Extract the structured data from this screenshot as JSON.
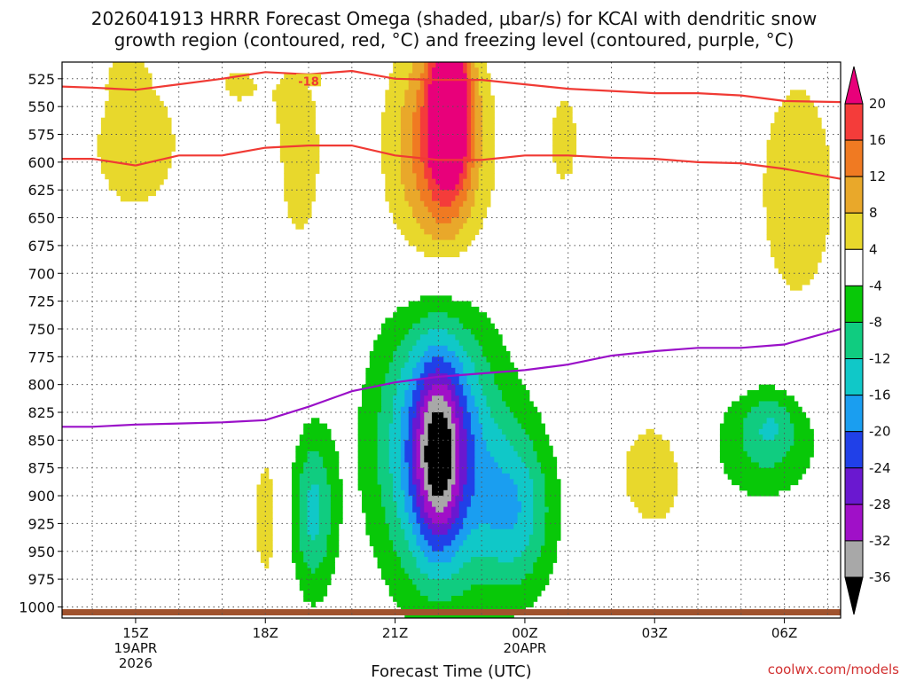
{
  "chart_data": {
    "type": "contour",
    "title_line1": "2026041913 HRRR Forecast Omega (shaded, μbar/s) for KCAI with dendritic snow",
    "title_line2": "growth region (contoured, red, °C) and freezing level (contoured, purple, °C)",
    "xlabel": "Forecast Time (UTC)",
    "ylabel": "",
    "y_units": "hPa",
    "ylim": [
      1010,
      510
    ],
    "xlim": [
      13.3,
      31.3
    ],
    "y_ticks": [
      525,
      550,
      575,
      600,
      625,
      650,
      675,
      700,
      725,
      750,
      775,
      800,
      825,
      850,
      875,
      900,
      925,
      950,
      975,
      1000
    ],
    "x_ticks": [
      {
        "hour": 15,
        "label": "15Z",
        "date": "19APR",
        "year": "2026"
      },
      {
        "hour": 18,
        "label": "18Z",
        "date": "",
        "year": ""
      },
      {
        "hour": 21,
        "label": "21Z",
        "date": "",
        "year": ""
      },
      {
        "hour": 24,
        "label": "00Z",
        "date": "20APR",
        "year": ""
      },
      {
        "hour": 27,
        "label": "03Z",
        "date": "",
        "year": ""
      },
      {
        "hour": 30,
        "label": "06Z",
        "date": "",
        "year": ""
      }
    ],
    "colorbar": {
      "ticks": [
        "20",
        "16",
        "12",
        "8",
        "4",
        "-4",
        "-8",
        "-12",
        "-16",
        "-20",
        "-24",
        "-28",
        "-32",
        "-36"
      ],
      "bins": [
        {
          "lo": 20,
          "hi": 99,
          "color": "#e8007a"
        },
        {
          "lo": 16,
          "hi": 20,
          "color": "#f43c3a"
        },
        {
          "lo": 12,
          "hi": 16,
          "color": "#f07a22"
        },
        {
          "lo": 8,
          "hi": 12,
          "color": "#e9a82a"
        },
        {
          "lo": 4,
          "hi": 8,
          "color": "#e8d82c"
        },
        {
          "lo": -4,
          "hi": 4,
          "color": "#ffffff"
        },
        {
          "lo": -8,
          "hi": -4,
          "color": "#08c808"
        },
        {
          "lo": -12,
          "hi": -8,
          "color": "#10cc80"
        },
        {
          "lo": -16,
          "hi": -12,
          "color": "#10c8c8"
        },
        {
          "lo": -20,
          "hi": -16,
          "color": "#1a9ef0"
        },
        {
          "lo": -24,
          "hi": -20,
          "color": "#2040e8"
        },
        {
          "lo": -28,
          "hi": -24,
          "color": "#6a18d0"
        },
        {
          "lo": -32,
          "hi": -28,
          "color": "#a010c8"
        },
        {
          "lo": -36,
          "hi": -32,
          "color": "#a8a8a8"
        },
        {
          "lo": -99,
          "hi": -36,
          "color": "#000000"
        }
      ]
    },
    "omega_blobs": [
      {
        "t": 15.0,
        "p": 585,
        "rt": 1.15,
        "rp": 68,
        "w": 7
      },
      {
        "t": 14.8,
        "p": 520,
        "rt": 0.45,
        "rp": 22,
        "w": 5
      },
      {
        "t": 18.8,
        "p": 595,
        "rt": 0.85,
        "rp": 140,
        "w": 5
      },
      {
        "t": 17.3,
        "p": 530,
        "rt": 0.9,
        "rp": 45,
        "w": 4
      },
      {
        "t": 22.0,
        "p": 590,
        "rt": 1.15,
        "rp": 110,
        "w": 15
      },
      {
        "t": 22.2,
        "p": 560,
        "rt": 0.5,
        "rp": 80,
        "w": 12
      },
      {
        "t": 22.3,
        "p": 545,
        "rt": 0.4,
        "rp": 55,
        "w": 18
      },
      {
        "t": 24.9,
        "p": 580,
        "rt": 0.55,
        "rp": 70,
        "w": 5
      },
      {
        "t": 30.3,
        "p": 625,
        "rt": 1.2,
        "rp": 140,
        "w": 6
      },
      {
        "t": 18.0,
        "p": 920,
        "rt": 0.32,
        "rp": 70,
        "w": 6
      },
      {
        "t": 27.0,
        "p": 880,
        "rt": 1.1,
        "rp": 65,
        "w": 6
      },
      {
        "t": 22.0,
        "p": 855,
        "rt": 1.6,
        "rp": 130,
        "w": -14
      },
      {
        "t": 22.0,
        "p": 860,
        "rt": 1.0,
        "rp": 110,
        "w": -12
      },
      {
        "t": 22.0,
        "p": 865,
        "rt": 0.5,
        "rp": 80,
        "w": -16
      },
      {
        "t": 19.1,
        "p": 915,
        "rt": 0.5,
        "rp": 75,
        "w": -13
      },
      {
        "t": 23.8,
        "p": 915,
        "rt": 0.9,
        "rp": 75,
        "w": -13
      },
      {
        "t": 29.5,
        "p": 855,
        "rt": 1.4,
        "rp": 55,
        "w": -8
      },
      {
        "t": 29.7,
        "p": 835,
        "rt": 0.6,
        "rp": 30,
        "w": -6
      }
    ],
    "dendritic_lines": [
      {
        "label": "-18",
        "label_at": [
          19.0,
          527
        ],
        "points": [
          [
            13.3,
            532
          ],
          [
            14.0,
            533
          ],
          [
            15.0,
            535
          ],
          [
            16.0,
            530
          ],
          [
            17.0,
            525
          ],
          [
            18.0,
            519
          ],
          [
            19.0,
            521
          ],
          [
            20.0,
            518
          ],
          [
            21.0,
            525
          ],
          [
            22.0,
            526
          ],
          [
            23.0,
            526
          ],
          [
            24.0,
            530
          ],
          [
            25.0,
            534
          ],
          [
            26.0,
            536
          ],
          [
            27.0,
            538
          ],
          [
            28.0,
            538
          ],
          [
            29.0,
            540
          ],
          [
            30.0,
            545
          ],
          [
            31.3,
            546
          ]
        ]
      },
      {
        "label": "",
        "label_at": null,
        "points": [
          [
            13.3,
            597
          ],
          [
            14.0,
            597
          ],
          [
            15.0,
            603
          ],
          [
            16.0,
            594
          ],
          [
            17.0,
            594
          ],
          [
            18.0,
            587
          ],
          [
            19.0,
            585
          ],
          [
            20.0,
            585
          ],
          [
            21.0,
            594
          ],
          [
            22.0,
            598
          ],
          [
            23.0,
            598
          ],
          [
            24.0,
            594
          ],
          [
            25.0,
            594
          ],
          [
            26.0,
            596
          ],
          [
            27.0,
            597
          ],
          [
            28.0,
            600
          ],
          [
            29.0,
            601
          ],
          [
            30.0,
            606
          ],
          [
            31.3,
            615
          ]
        ]
      }
    ],
    "freezing_line": [
      [
        13.3,
        838
      ],
      [
        14.0,
        838
      ],
      [
        15.0,
        836
      ],
      [
        16.0,
        835
      ],
      [
        17.0,
        834
      ],
      [
        18.0,
        832
      ],
      [
        19.0,
        820
      ],
      [
        20.0,
        806
      ],
      [
        21.0,
        798
      ],
      [
        22.0,
        793
      ],
      [
        23.0,
        790
      ],
      [
        24.0,
        787
      ],
      [
        25.0,
        782
      ],
      [
        26.0,
        774
      ],
      [
        27.0,
        770
      ],
      [
        28.0,
        767
      ],
      [
        29.0,
        767
      ],
      [
        30.0,
        764
      ],
      [
        31.3,
        750
      ]
    ]
  },
  "credit": "coolwx.com/models"
}
